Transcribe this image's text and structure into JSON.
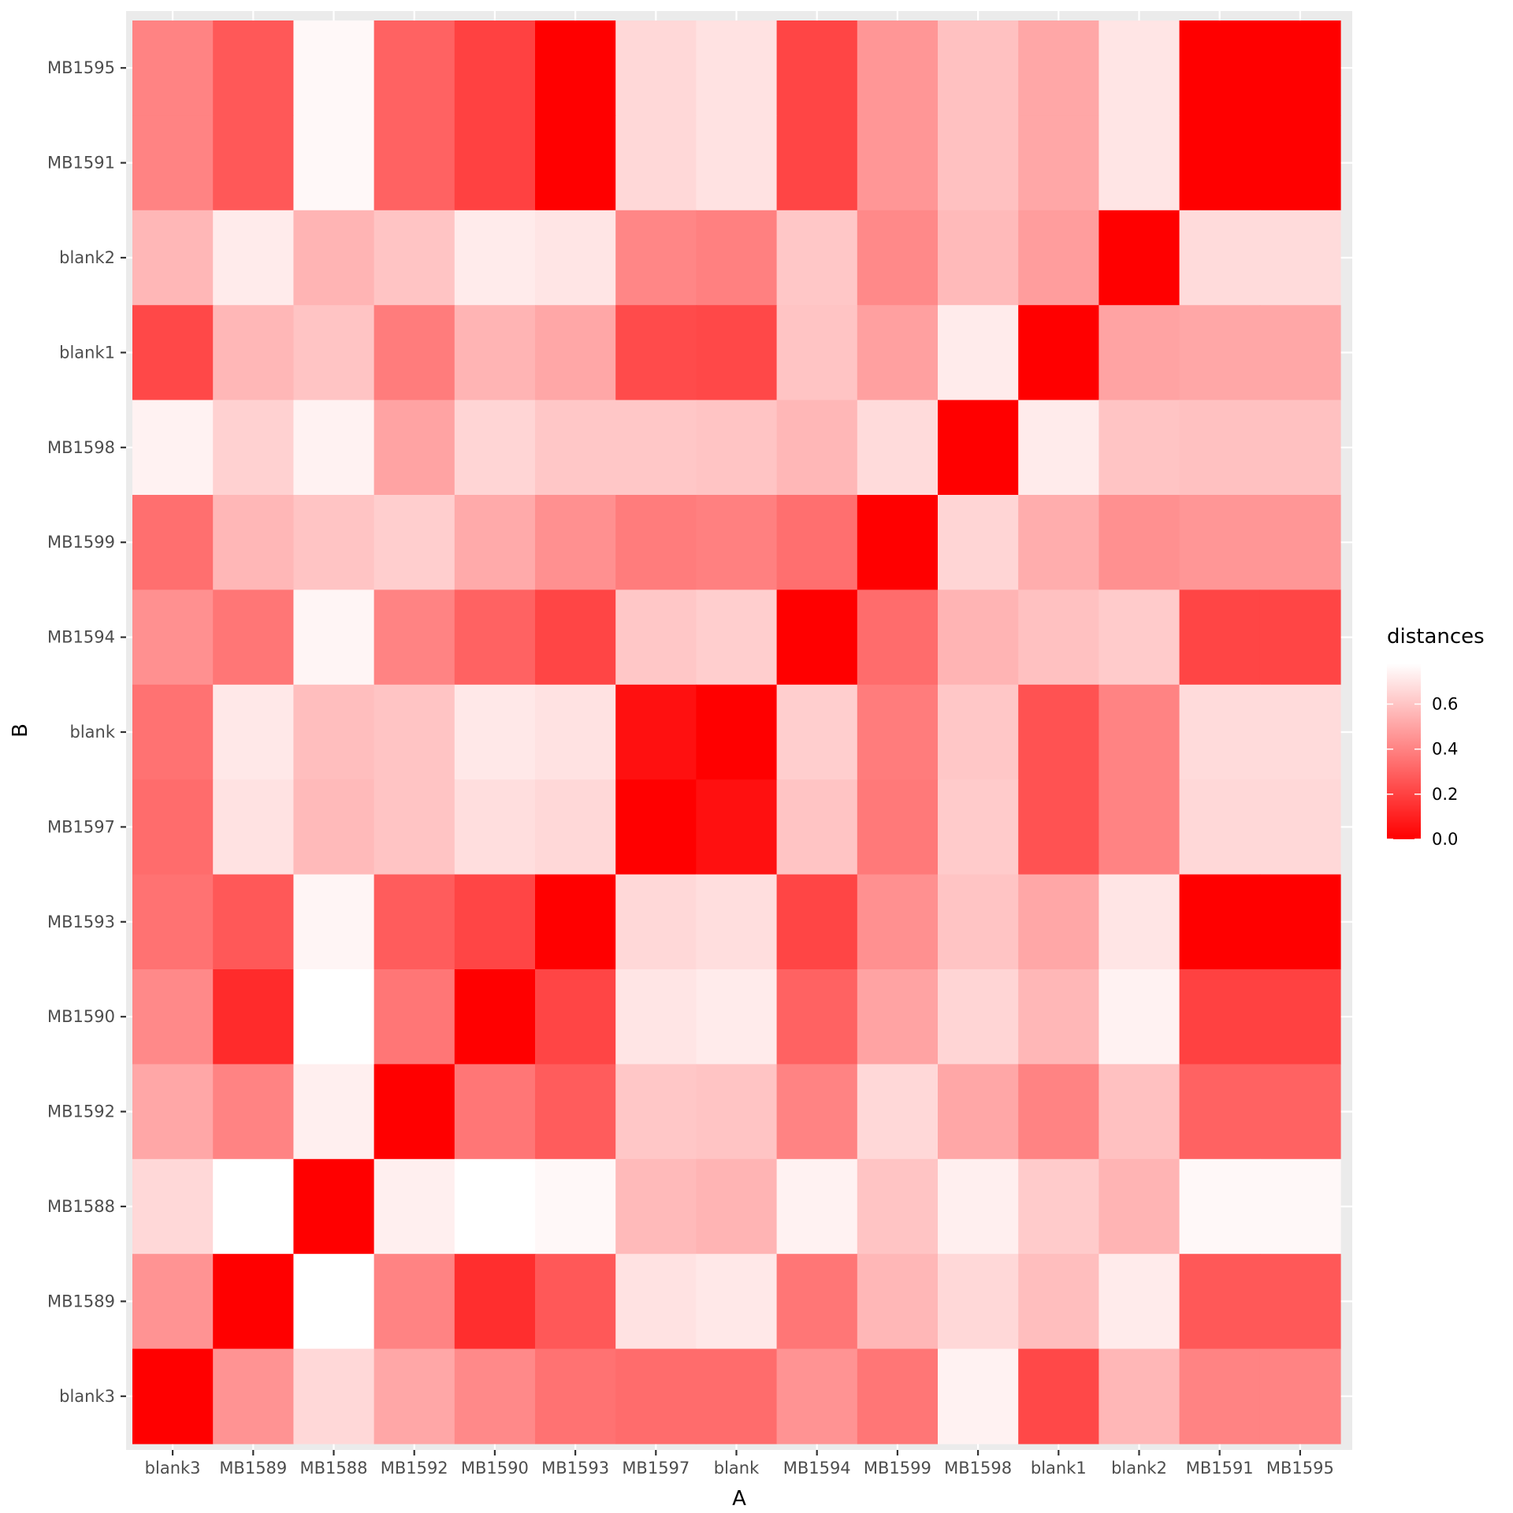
{
  "chart_data": {
    "type": "heatmap",
    "title": "",
    "xlabel": "A",
    "ylabel": "B",
    "x_categories": [
      "blank3",
      "MB1589",
      "MB1588",
      "MB1592",
      "MB1590",
      "MB1593",
      "MB1597",
      "blank",
      "MB1594",
      "MB1599",
      "MB1598",
      "blank1",
      "blank2",
      "MB1591",
      "MB1595"
    ],
    "y_categories_top_to_bottom": [
      "MB1595",
      "MB1591",
      "blank2",
      "blank1",
      "MB1598",
      "MB1599",
      "MB1594",
      "blank",
      "MB1597",
      "MB1593",
      "MB1590",
      "MB1592",
      "MB1588",
      "MB1589",
      "blank3"
    ],
    "values": [
      [
        0.4,
        0.27,
        0.76,
        0.3,
        0.2,
        0.0,
        0.66,
        0.69,
        0.21,
        0.46,
        0.59,
        0.51,
        0.7,
        0.0,
        0.0
      ],
      [
        0.4,
        0.27,
        0.76,
        0.3,
        0.2,
        0.0,
        0.66,
        0.69,
        0.21,
        0.46,
        0.59,
        0.51,
        0.7,
        0.0,
        0.0
      ],
      [
        0.56,
        0.72,
        0.55,
        0.6,
        0.72,
        0.7,
        0.41,
        0.39,
        0.61,
        0.42,
        0.57,
        0.48,
        0.0,
        0.67,
        0.67
      ],
      [
        0.22,
        0.56,
        0.6,
        0.38,
        0.55,
        0.51,
        0.23,
        0.22,
        0.6,
        0.49,
        0.72,
        0.0,
        0.5,
        0.51,
        0.51
      ],
      [
        0.74,
        0.64,
        0.74,
        0.5,
        0.65,
        0.61,
        0.61,
        0.6,
        0.56,
        0.67,
        0.0,
        0.72,
        0.6,
        0.59,
        0.59
      ],
      [
        0.34,
        0.56,
        0.6,
        0.63,
        0.52,
        0.44,
        0.38,
        0.39,
        0.34,
        0.0,
        0.65,
        0.53,
        0.44,
        0.46,
        0.46
      ],
      [
        0.44,
        0.36,
        0.75,
        0.4,
        0.3,
        0.21,
        0.61,
        0.63,
        0.0,
        0.33,
        0.55,
        0.59,
        0.62,
        0.21,
        0.21
      ],
      [
        0.35,
        0.71,
        0.58,
        0.6,
        0.71,
        0.69,
        0.05,
        0.0,
        0.63,
        0.38,
        0.61,
        0.25,
        0.4,
        0.67,
        0.67
      ],
      [
        0.33,
        0.69,
        0.57,
        0.6,
        0.68,
        0.66,
        0.0,
        0.05,
        0.6,
        0.37,
        0.62,
        0.25,
        0.4,
        0.66,
        0.66
      ],
      [
        0.35,
        0.27,
        0.75,
        0.28,
        0.21,
        0.0,
        0.66,
        0.68,
        0.21,
        0.44,
        0.6,
        0.51,
        0.7,
        0.0,
        0.0
      ],
      [
        0.42,
        0.13,
        0.78,
        0.36,
        0.0,
        0.21,
        0.7,
        0.72,
        0.3,
        0.5,
        0.65,
        0.56,
        0.74,
        0.2,
        0.2
      ],
      [
        0.51,
        0.4,
        0.73,
        0.0,
        0.36,
        0.28,
        0.61,
        0.6,
        0.4,
        0.66,
        0.51,
        0.4,
        0.59,
        0.3,
        0.3
      ],
      [
        0.66,
        0.78,
        0.0,
        0.73,
        0.78,
        0.76,
        0.57,
        0.55,
        0.74,
        0.6,
        0.73,
        0.62,
        0.55,
        0.76,
        0.76
      ],
      [
        0.45,
        0.0,
        0.78,
        0.4,
        0.14,
        0.27,
        0.69,
        0.71,
        0.36,
        0.56,
        0.66,
        0.58,
        0.72,
        0.27,
        0.27
      ],
      [
        0.0,
        0.45,
        0.66,
        0.51,
        0.42,
        0.35,
        0.33,
        0.33,
        0.45,
        0.36,
        0.74,
        0.22,
        0.56,
        0.4,
        0.4
      ]
    ],
    "colorscale": {
      "low": "#ff0000",
      "high": "#ffffff",
      "min": 0,
      "max": 0.78
    },
    "legend": {
      "title": "distances",
      "ticks": [
        0,
        0.2,
        0.4,
        0.6
      ],
      "tick_labels": [
        "0.0",
        "0.2",
        "0.4",
        "0.6"
      ],
      "placement": "right"
    },
    "panel_background": "#ebebeb",
    "grid": true
  }
}
